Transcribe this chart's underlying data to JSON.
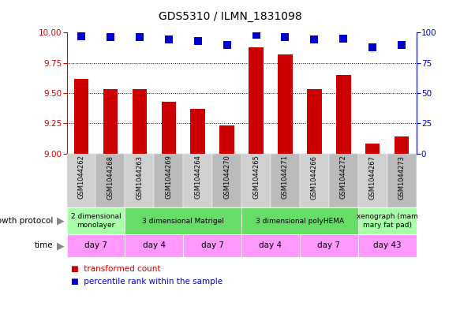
{
  "title": "GDS5310 / ILMN_1831098",
  "samples": [
    "GSM1044262",
    "GSM1044268",
    "GSM1044263",
    "GSM1044269",
    "GSM1044264",
    "GSM1044270",
    "GSM1044265",
    "GSM1044271",
    "GSM1044266",
    "GSM1044272",
    "GSM1044267",
    "GSM1044273"
  ],
  "red_values": [
    9.62,
    9.53,
    9.53,
    9.43,
    9.37,
    9.23,
    9.88,
    9.82,
    9.53,
    9.65,
    9.08,
    9.14
  ],
  "blue_values": [
    97,
    96,
    96,
    94,
    93,
    90,
    98,
    96,
    94,
    95,
    88,
    90
  ],
  "ylim_left": [
    9.0,
    10.0
  ],
  "ylim_right": [
    0,
    100
  ],
  "yticks_left": [
    9.0,
    9.25,
    9.5,
    9.75,
    10.0
  ],
  "yticks_right": [
    0,
    25,
    50,
    75,
    100
  ],
  "bar_color": "#cc0000",
  "dot_color": "#0000cc",
  "growth_protocol_groups": [
    {
      "label": "2 dimensional\nmonolayer",
      "start": 0,
      "end": 2,
      "color": "#aaffaa"
    },
    {
      "label": "3 dimensional Matrigel",
      "start": 2,
      "end": 6,
      "color": "#66dd66"
    },
    {
      "label": "3 dimensional polyHEMA",
      "start": 6,
      "end": 10,
      "color": "#66dd66"
    },
    {
      "label": "xenograph (mam\nmary fat pad)",
      "start": 10,
      "end": 12,
      "color": "#aaffaa"
    }
  ],
  "time_groups": [
    {
      "label": "day 7",
      "start": 0,
      "end": 2,
      "color": "#ff99ff"
    },
    {
      "label": "day 4",
      "start": 2,
      "end": 4,
      "color": "#ff99ff"
    },
    {
      "label": "day 7",
      "start": 4,
      "end": 6,
      "color": "#ff99ff"
    },
    {
      "label": "day 4",
      "start": 6,
      "end": 8,
      "color": "#ff99ff"
    },
    {
      "label": "day 7",
      "start": 8,
      "end": 10,
      "color": "#ff99ff"
    },
    {
      "label": "day 43",
      "start": 10,
      "end": 12,
      "color": "#ff99ff"
    }
  ],
  "bg_color": "#ffffff",
  "bar_width": 0.5,
  "dot_size": 45,
  "sample_bg_even": "#d0d0d0",
  "sample_bg_odd": "#bbbbbb",
  "left_label_color": "#333333",
  "arrow_color": "#888888"
}
